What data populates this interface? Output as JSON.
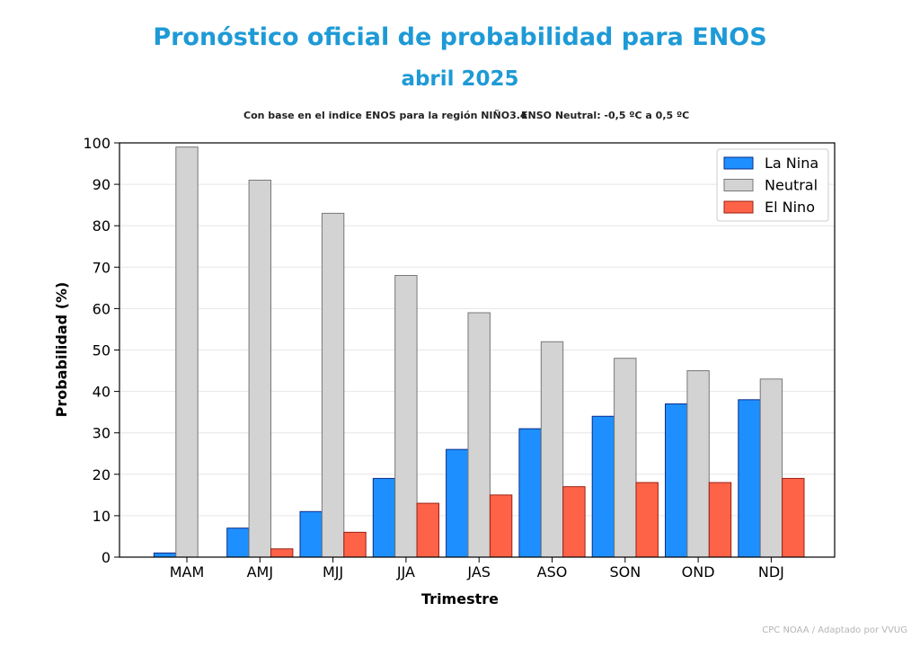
{
  "header": {
    "title": "Pronóstico oficial de probabilidad para ENOS",
    "subtitle": "abril 2025",
    "note_left": "Con base en el indice ENOS para la región NIÑO3.4",
    "note_right": "ENSO Neutral: -0,5 ºC a 0,5 ºC"
  },
  "footer": {
    "credit": "CPC NOAA / Adaptado por VVUG"
  },
  "colors": {
    "title": "#1e9ad6",
    "la_nina": "#1e8fff",
    "neutral": "#d3d3d3",
    "el_nino": "#ff6347"
  },
  "chart_data": {
    "type": "bar",
    "xlabel": "Trimestre",
    "ylabel": "Probabilidad (%)",
    "ylim": [
      0,
      100
    ],
    "yticks": [
      0,
      10,
      20,
      30,
      40,
      50,
      60,
      70,
      80,
      90,
      100
    ],
    "grid": true,
    "legend_position": "top-right",
    "categories": [
      "MAM",
      "AMJ",
      "MJJ",
      "JJA",
      "JAS",
      "ASO",
      "SON",
      "OND",
      "NDJ"
    ],
    "series": [
      {
        "name": "La Nina",
        "color": "#1e8fff",
        "values": [
          1,
          7,
          11,
          19,
          26,
          31,
          34,
          37,
          38
        ]
      },
      {
        "name": "Neutral",
        "color": "#d3d3d3",
        "values": [
          99,
          91,
          83,
          68,
          59,
          52,
          48,
          45,
          43
        ]
      },
      {
        "name": "El Nino",
        "color": "#ff6347",
        "values": [
          0,
          2,
          6,
          13,
          15,
          17,
          18,
          18,
          19
        ]
      }
    ]
  }
}
